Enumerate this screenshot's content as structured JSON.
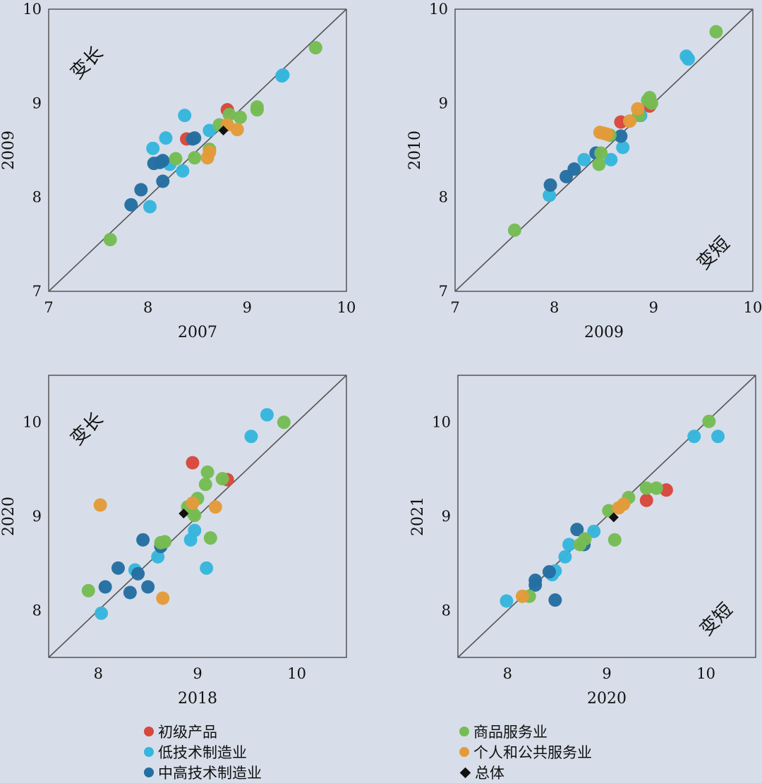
{
  "colors": {
    "background": "#d7dee9",
    "diagonal": "#555555",
    "初级产品": "#d9473b",
    "低技术制造业": "#36b6dd",
    "中高技术制造业": "#256ea1",
    "商品服务业": "#76bc53",
    "个人和公共服务业": "#e39b39",
    "总体": "#111111"
  },
  "legend": {
    "items": [
      {
        "label": "初级产品",
        "key": "初级产品",
        "shape": "circle"
      },
      {
        "label": "低技术制造业",
        "key": "低技术制造业",
        "shape": "circle"
      },
      {
        "label": "中高技术制造业",
        "key": "中高技术制造业",
        "shape": "circle"
      },
      {
        "label": "商品服务业",
        "key": "商品服务业",
        "shape": "circle"
      },
      {
        "label": "个人和公共服务业",
        "key": "个人和公共服务业",
        "shape": "circle"
      },
      {
        "label": "总体",
        "key": "总体",
        "shape": "diamond"
      }
    ]
  },
  "chart_data": [
    {
      "type": "scatter",
      "xlabel": "2007",
      "ylabel": "2009",
      "xlim": [
        7,
        10
      ],
      "ylim": [
        7,
        10
      ],
      "xticks": [
        "7",
        "8",
        "9",
        "10"
      ],
      "yticks": [
        "7",
        "8",
        "9",
        "10"
      ],
      "annotation": {
        "text": "变长",
        "corner": "top-left"
      },
      "diagonal": true,
      "series": [
        {
          "key": "初级产品",
          "points": [
            [
              8.39,
              8.62
            ],
            [
              8.8,
              8.93
            ]
          ]
        },
        {
          "key": "低技术制造业",
          "points": [
            [
              8.02,
              7.9
            ],
            [
              8.05,
              8.52
            ],
            [
              8.18,
              8.63
            ],
            [
              8.22,
              8.35
            ],
            [
              8.35,
              8.28
            ],
            [
              8.37,
              8.87
            ],
            [
              8.62,
              8.71
            ],
            [
              9.35,
              9.29
            ],
            [
              9.36,
              9.3
            ]
          ]
        },
        {
          "key": "中高技术制造业",
          "points": [
            [
              7.83,
              7.92
            ],
            [
              7.93,
              8.08
            ],
            [
              8.06,
              8.36
            ],
            [
              8.12,
              8.37
            ],
            [
              8.15,
              8.39
            ],
            [
              8.15,
              8.17
            ],
            [
              8.47,
              8.63
            ],
            [
              8.45,
              8.62
            ]
          ]
        },
        {
          "key": "商品服务业",
          "points": [
            [
              7.62,
              7.55
            ],
            [
              8.28,
              8.41
            ],
            [
              8.47,
              8.42
            ],
            [
              8.62,
              8.51
            ],
            [
              8.72,
              8.77
            ],
            [
              8.82,
              8.88
            ],
            [
              8.93,
              8.85
            ],
            [
              9.1,
              8.93
            ],
            [
              9.1,
              8.96
            ],
            [
              9.69,
              9.59
            ]
          ]
        },
        {
          "key": "个人和公共服务业",
          "points": [
            [
              8.6,
              8.42
            ],
            [
              8.62,
              8.48
            ],
            [
              8.8,
              8.77
            ],
            [
              8.9,
              8.72
            ]
          ]
        },
        {
          "key": "总体",
          "points": [
            [
              8.76,
              8.71
            ]
          ]
        }
      ]
    },
    {
      "type": "scatter",
      "xlabel": "2009",
      "ylabel": "2010",
      "xlim": [
        7,
        10
      ],
      "ylim": [
        7,
        10
      ],
      "xticks": [
        "7",
        "8",
        "9",
        "10"
      ],
      "yticks": [
        "7",
        "8",
        "9",
        "10"
      ],
      "annotation": {
        "text": "变短",
        "corner": "bottom-right"
      },
      "diagonal": true,
      "series": [
        {
          "key": "初级产品",
          "points": [
            [
              8.67,
              8.8
            ],
            [
              8.96,
              8.97
            ]
          ]
        },
        {
          "key": "低技术制造业",
          "points": [
            [
              7.95,
              8.02
            ],
            [
              8.3,
              8.4
            ],
            [
              8.57,
              8.4
            ],
            [
              8.69,
              8.53
            ],
            [
              8.87,
              8.87
            ],
            [
              9.33,
              9.5
            ],
            [
              9.35,
              9.47
            ]
          ]
        },
        {
          "key": "中高技术制造业",
          "points": [
            [
              7.96,
              8.13
            ],
            [
              8.12,
              8.22
            ],
            [
              8.2,
              8.3
            ],
            [
              8.42,
              8.47
            ],
            [
              8.67,
              8.65
            ]
          ]
        },
        {
          "key": "商品服务业",
          "points": [
            [
              7.6,
              7.65
            ],
            [
              8.45,
              8.35
            ],
            [
              8.47,
              8.47
            ],
            [
              8.56,
              8.66
            ],
            [
              8.85,
              8.87
            ],
            [
              8.94,
              9.03
            ],
            [
              8.96,
              9.06
            ],
            [
              8.98,
              9.0
            ],
            [
              9.63,
              9.76
            ]
          ]
        },
        {
          "key": "个人和公共服务业",
          "points": [
            [
              8.46,
              8.69
            ],
            [
              8.5,
              8.68
            ],
            [
              8.53,
              8.67
            ],
            [
              8.76,
              8.81
            ],
            [
              8.84,
              8.94
            ]
          ]
        }
      ]
    },
    {
      "type": "scatter",
      "xlabel": "2018",
      "ylabel": "2020",
      "xlim": [
        7.5,
        10.5
      ],
      "ylim": [
        7.5,
        10.5
      ],
      "xticks": [
        "8",
        "9",
        "10"
      ],
      "yticks": [
        "8",
        "9",
        "10"
      ],
      "annotation": {
        "text": "变长",
        "corner": "top-left"
      },
      "diagonal": true,
      "series": [
        {
          "key": "初级产品",
          "points": [
            [
              8.95,
              9.57
            ],
            [
              9.3,
              9.39
            ]
          ]
        },
        {
          "key": "低技术制造业",
          "points": [
            [
              8.03,
              7.97
            ],
            [
              8.37,
              8.43
            ],
            [
              8.6,
              8.57
            ],
            [
              8.93,
              8.75
            ],
            [
              8.97,
              8.85
            ],
            [
              9.09,
              8.45
            ],
            [
              9.54,
              9.85
            ],
            [
              9.7,
              10.08
            ]
          ]
        },
        {
          "key": "中高技术制造业",
          "points": [
            [
              8.07,
              8.25
            ],
            [
              8.2,
              8.45
            ],
            [
              8.32,
              8.19
            ],
            [
              8.4,
              8.39
            ],
            [
              8.45,
              8.75
            ],
            [
              8.5,
              8.25
            ],
            [
              8.63,
              8.68
            ]
          ]
        },
        {
          "key": "商品服务业",
          "points": [
            [
              7.9,
              8.21
            ],
            [
              8.63,
              8.72
            ],
            [
              8.67,
              8.73
            ],
            [
              8.9,
              9.1
            ],
            [
              8.94,
              9.05
            ],
            [
              8.97,
              9.01
            ],
            [
              9.0,
              9.19
            ],
            [
              9.08,
              9.34
            ],
            [
              9.1,
              9.47
            ],
            [
              9.13,
              8.77
            ],
            [
              9.25,
              9.4
            ],
            [
              9.87,
              10.0
            ]
          ]
        },
        {
          "key": "个人和公共服务业",
          "points": [
            [
              8.02,
              9.12
            ],
            [
              8.65,
              8.13
            ],
            [
              8.95,
              9.14
            ],
            [
              9.18,
              9.1
            ]
          ]
        },
        {
          "key": "总体",
          "points": [
            [
              8.86,
              9.03
            ]
          ]
        }
      ]
    },
    {
      "type": "scatter",
      "xlabel": "2020",
      "ylabel": "2021",
      "xlim": [
        7.5,
        10.5
      ],
      "ylim": [
        7.5,
        10.5
      ],
      "xticks": [
        "8",
        "9",
        "10"
      ],
      "yticks": [
        "8",
        "9",
        "10"
      ],
      "annotation": {
        "text": "变短",
        "corner": "bottom-right"
      },
      "diagonal": true,
      "series": [
        {
          "key": "初级产品",
          "points": [
            [
              9.4,
              9.17
            ],
            [
              9.6,
              9.28
            ]
          ]
        },
        {
          "key": "低技术制造业",
          "points": [
            [
              7.99,
              8.1
            ],
            [
              8.45,
              8.38
            ],
            [
              8.48,
              8.42
            ],
            [
              8.58,
              8.57
            ],
            [
              8.62,
              8.7
            ],
            [
              8.87,
              8.84
            ],
            [
              9.88,
              9.85
            ],
            [
              10.12,
              9.85
            ]
          ]
        },
        {
          "key": "中高技术制造业",
          "points": [
            [
              8.28,
              8.27
            ],
            [
              8.28,
              8.32
            ],
            [
              8.42,
              8.41
            ],
            [
              8.48,
              8.11
            ],
            [
              8.7,
              8.86
            ],
            [
              8.77,
              8.7
            ]
          ]
        },
        {
          "key": "商品服务业",
          "points": [
            [
              8.22,
              8.15
            ],
            [
              8.73,
              8.7
            ],
            [
              8.78,
              8.76
            ],
            [
              9.02,
              9.06
            ],
            [
              9.08,
              8.75
            ],
            [
              9.22,
              9.2
            ],
            [
              9.4,
              9.3
            ],
            [
              9.5,
              9.3
            ],
            [
              10.03,
              10.01
            ]
          ]
        },
        {
          "key": "个人和公共服务业",
          "points": [
            [
              8.15,
              8.15
            ],
            [
              9.12,
              9.09
            ],
            [
              9.17,
              9.13
            ]
          ]
        },
        {
          "key": "总体",
          "points": [
            [
              9.07,
              8.99
            ]
          ]
        }
      ]
    }
  ]
}
